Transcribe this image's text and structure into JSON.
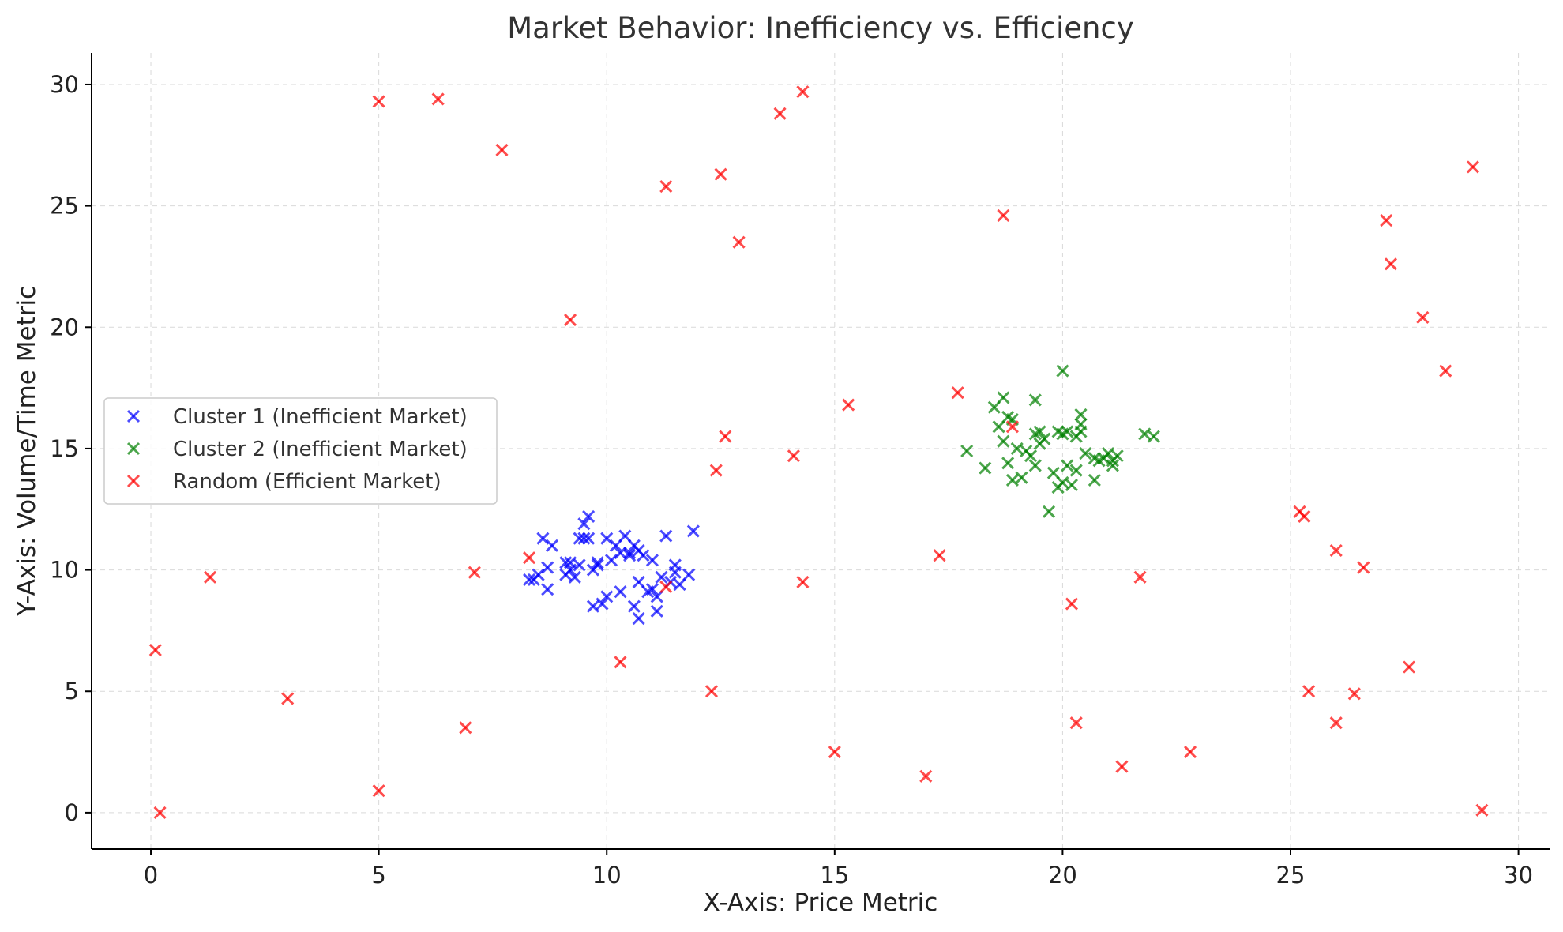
{
  "chart_data": {
    "type": "scatter",
    "title": "Market Behavior: Inefficiency vs. Efficiency",
    "xlabel": "X-Axis: Price Metric",
    "ylabel": "Y-Axis: Volume/Time Metric",
    "xlim": [
      -1.3,
      30.7
    ],
    "ylim": [
      -1.5,
      31.3
    ],
    "xticks": [
      0,
      5,
      10,
      15,
      20,
      25,
      30
    ],
    "yticks": [
      0,
      5,
      10,
      15,
      20,
      25,
      30
    ],
    "grid": true,
    "legend_position": "center-left",
    "series": [
      {
        "name": "Cluster 1 (Inefficient Market)",
        "color": "#0000ff",
        "marker": "x",
        "points": [
          [
            8.3,
            9.6
          ],
          [
            8.4,
            9.6
          ],
          [
            8.5,
            9.8
          ],
          [
            8.6,
            11.3
          ],
          [
            8.7,
            9.2
          ],
          [
            8.7,
            10.1
          ],
          [
            8.8,
            11.0
          ],
          [
            9.1,
            10.3
          ],
          [
            9.1,
            9.8
          ],
          [
            9.2,
            10.0
          ],
          [
            9.2,
            10.3
          ],
          [
            9.3,
            9.7
          ],
          [
            9.4,
            11.3
          ],
          [
            9.4,
            10.2
          ],
          [
            9.5,
            11.9
          ],
          [
            9.5,
            11.3
          ],
          [
            9.6,
            12.2
          ],
          [
            9.6,
            11.3
          ],
          [
            9.7,
            10.0
          ],
          [
            9.7,
            8.5
          ],
          [
            9.8,
            10.2
          ],
          [
            9.8,
            10.3
          ],
          [
            9.9,
            8.6
          ],
          [
            10.0,
            8.9
          ],
          [
            10.0,
            11.3
          ],
          [
            10.1,
            10.4
          ],
          [
            10.2,
            11.0
          ],
          [
            10.3,
            10.7
          ],
          [
            10.3,
            9.1
          ],
          [
            10.4,
            11.4
          ],
          [
            10.5,
            10.7
          ],
          [
            10.5,
            10.6
          ],
          [
            10.6,
            11.0
          ],
          [
            10.6,
            8.5
          ],
          [
            10.7,
            10.8
          ],
          [
            10.7,
            9.5
          ],
          [
            10.7,
            8.0
          ],
          [
            10.8,
            10.6
          ],
          [
            10.9,
            9.1
          ],
          [
            11.0,
            9.2
          ],
          [
            11.0,
            10.4
          ],
          [
            11.1,
            8.9
          ],
          [
            11.1,
            8.3
          ],
          [
            11.2,
            9.7
          ],
          [
            11.3,
            11.4
          ],
          [
            11.4,
            9.5
          ],
          [
            11.5,
            10.2
          ],
          [
            11.5,
            9.9
          ],
          [
            11.6,
            9.4
          ],
          [
            11.8,
            9.8
          ],
          [
            11.9,
            11.6
          ]
        ]
      },
      {
        "name": "Cluster 2 (Inefficient Market)",
        "color": "#008000",
        "marker": "x",
        "points": [
          [
            17.9,
            14.9
          ],
          [
            18.3,
            14.2
          ],
          [
            18.5,
            16.7
          ],
          [
            18.6,
            15.9
          ],
          [
            18.7,
            17.1
          ],
          [
            18.7,
            15.3
          ],
          [
            18.8,
            16.3
          ],
          [
            18.8,
            14.4
          ],
          [
            18.9,
            13.7
          ],
          [
            18.9,
            16.2
          ],
          [
            19.0,
            15.0
          ],
          [
            19.1,
            13.8
          ],
          [
            19.2,
            14.9
          ],
          [
            19.3,
            14.7
          ],
          [
            19.4,
            15.6
          ],
          [
            19.4,
            17.0
          ],
          [
            19.4,
            14.3
          ],
          [
            19.5,
            15.7
          ],
          [
            19.5,
            15.2
          ],
          [
            19.6,
            15.4
          ],
          [
            19.7,
            12.4
          ],
          [
            19.8,
            14.0
          ],
          [
            19.9,
            15.7
          ],
          [
            19.9,
            13.4
          ],
          [
            20.0,
            18.2
          ],
          [
            20.0,
            15.6
          ],
          [
            20.0,
            13.6
          ],
          [
            20.1,
            15.7
          ],
          [
            20.1,
            14.3
          ],
          [
            20.2,
            13.5
          ],
          [
            20.3,
            14.1
          ],
          [
            20.3,
            15.5
          ],
          [
            20.4,
            16.4
          ],
          [
            20.4,
            16.0
          ],
          [
            20.4,
            15.7
          ],
          [
            20.5,
            14.8
          ],
          [
            20.7,
            13.7
          ],
          [
            20.7,
            14.6
          ],
          [
            20.8,
            14.5
          ],
          [
            20.9,
            14.6
          ],
          [
            21.0,
            14.8
          ],
          [
            21.1,
            14.3
          ],
          [
            21.1,
            14.5
          ],
          [
            21.2,
            14.7
          ],
          [
            21.8,
            15.6
          ],
          [
            22.0,
            15.5
          ]
        ]
      },
      {
        "name": "Random (Efficient Market)",
        "color": "#ff0000",
        "marker": "x",
        "points": [
          [
            0.1,
            6.7
          ],
          [
            0.2,
            0.0
          ],
          [
            1.3,
            9.7
          ],
          [
            3.0,
            4.7
          ],
          [
            5.0,
            29.3
          ],
          [
            5.0,
            0.9
          ],
          [
            6.3,
            29.4
          ],
          [
            6.9,
            3.5
          ],
          [
            7.1,
            9.9
          ],
          [
            7.7,
            27.3
          ],
          [
            8.3,
            10.5
          ],
          [
            9.2,
            20.3
          ],
          [
            10.3,
            6.2
          ],
          [
            11.3,
            9.3
          ],
          [
            11.3,
            25.8
          ],
          [
            12.3,
            5.0
          ],
          [
            12.4,
            14.1
          ],
          [
            12.5,
            26.3
          ],
          [
            12.6,
            15.5
          ],
          [
            12.9,
            23.5
          ],
          [
            13.8,
            28.8
          ],
          [
            14.1,
            14.7
          ],
          [
            14.3,
            29.7
          ],
          [
            14.3,
            9.5
          ],
          [
            15.0,
            2.5
          ],
          [
            15.3,
            16.8
          ],
          [
            17.0,
            1.5
          ],
          [
            17.3,
            10.6
          ],
          [
            17.7,
            17.3
          ],
          [
            18.7,
            24.6
          ],
          [
            18.9,
            15.9
          ],
          [
            20.2,
            8.6
          ],
          [
            20.3,
            3.7
          ],
          [
            21.3,
            1.9
          ],
          [
            21.7,
            9.7
          ],
          [
            22.8,
            2.5
          ],
          [
            25.2,
            12.4
          ],
          [
            25.3,
            12.2
          ],
          [
            25.4,
            5.0
          ],
          [
            26.0,
            10.8
          ],
          [
            26.0,
            3.7
          ],
          [
            26.4,
            4.9
          ],
          [
            26.6,
            10.1
          ],
          [
            27.1,
            24.4
          ],
          [
            27.2,
            22.6
          ],
          [
            27.6,
            6.0
          ],
          [
            27.9,
            20.4
          ],
          [
            28.4,
            18.2
          ],
          [
            29.0,
            26.6
          ],
          [
            29.2,
            0.1
          ]
        ]
      }
    ]
  }
}
